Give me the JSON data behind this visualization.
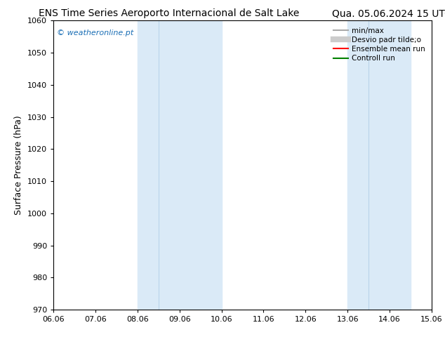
{
  "title_left": "ENS Time Series Aeroporto Internacional de Salt Lake",
  "title_right": "Qua. 05.06.2024 15 UTC",
  "ylabel": "Surface Pressure (hPa)",
  "xlabel": "",
  "ylim": [
    970,
    1060
  ],
  "yticks": [
    970,
    980,
    990,
    1000,
    1010,
    1020,
    1030,
    1040,
    1050,
    1060
  ],
  "xtick_labels": [
    "06.06",
    "07.06",
    "08.06",
    "09.06",
    "10.06",
    "11.06",
    "12.06",
    "13.06",
    "14.06",
    "15.06"
  ],
  "x_positions": [
    0,
    1,
    2,
    3,
    4,
    5,
    6,
    7,
    8,
    9
  ],
  "xlim": [
    0,
    9
  ],
  "shaded_regions": [
    {
      "x_start": 2,
      "x_end": 2.5,
      "color": "#daeaf7"
    },
    {
      "x_start": 2.5,
      "x_end": 4,
      "color": "#daeaf7"
    },
    {
      "x_start": 7,
      "x_end": 7.5,
      "color": "#daeaf7"
    },
    {
      "x_start": 7.5,
      "x_end": 8.5,
      "color": "#daeaf7"
    }
  ],
  "watermark_text": "© weatheronline.pt",
  "watermark_color": "#1a6eb5",
  "legend_entries": [
    {
      "label": "min/max",
      "color": "#aaaaaa",
      "lw": 1.5
    },
    {
      "label": "Desvio padr tilde;o",
      "color": "#cccccc",
      "lw": 6
    },
    {
      "label": "Ensemble mean run",
      "color": "red",
      "lw": 1.5
    },
    {
      "label": "Controll run",
      "color": "green",
      "lw": 1.5
    }
  ],
  "background_color": "#ffffff",
  "plot_bg_color": "#ffffff",
  "title_fontsize": 10,
  "label_fontsize": 9,
  "tick_fontsize": 8
}
